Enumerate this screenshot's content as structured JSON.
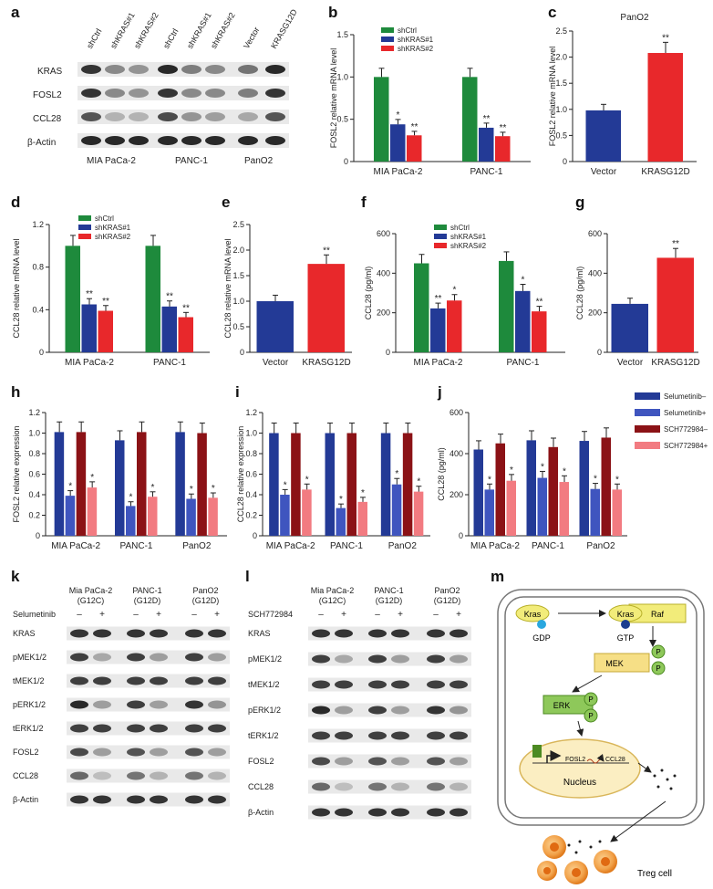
{
  "colors": {
    "green": "#1e8a3c",
    "blue": "#233a96",
    "red": "#e8282b",
    "darkred": "#8b1216",
    "pink": "#f27b81",
    "axis": "#222222"
  },
  "panel_letters": [
    "a",
    "b",
    "c",
    "d",
    "e",
    "f",
    "g",
    "h",
    "i",
    "j",
    "k",
    "l",
    "m"
  ],
  "panel_a": {
    "lane_labels": [
      "shCtrl",
      "shKRAS#1",
      "shKRAS#2",
      "shCtrl",
      "shKRAS#1",
      "shKRAS#2",
      "Vector",
      "KRASG12D"
    ],
    "row_labels": [
      "KRAS",
      "FOSL2",
      "CCL28",
      "β-Actin"
    ],
    "group_labels": [
      "MIA PaCa-2",
      "PANC-1",
      "PanO2"
    ]
  },
  "panel_k": {
    "groups": [
      {
        "name": "Mia PaCa-2",
        "sub": "(G12C)"
      },
      {
        "name": "PANC-1",
        "sub": "(G12D)"
      },
      {
        "name": "PanO2",
        "sub": "(G12D)"
      }
    ],
    "treatment": "Selumetinib",
    "signs": [
      "–",
      "+",
      "–",
      "+",
      "–",
      "+"
    ],
    "row_labels": [
      "KRAS",
      "pMEK1/2",
      "tMEK1/2",
      "pERK1/2",
      "tERK1/2",
      "FOSL2",
      "CCL28",
      "β-Actin"
    ]
  },
  "panel_l": {
    "groups": [
      {
        "name": "Mia PaCa-2",
        "sub": "(G12C)"
      },
      {
        "name": "PANC-1",
        "sub": "(G12D)"
      },
      {
        "name": "PanO2",
        "sub": "(G12D)"
      }
    ],
    "treatment": "SCH772984",
    "signs": [
      "–",
      "+",
      "–",
      "+",
      "–",
      "+"
    ],
    "row_labels": [
      "KRAS",
      "pMEK1/2",
      "tMEK1/2",
      "pERK1/2",
      "tERK1/2",
      "FOSL2",
      "CCL28",
      "β-Actin"
    ]
  },
  "panel_m": {
    "kras1": "Kras",
    "gdp": "GDP",
    "kras2": "Kras",
    "gtp": "GTP",
    "raf": "Raf",
    "mek": "MEK",
    "erk": "ERK",
    "p": "P",
    "fosl2": "FOSL2",
    "ccl28": "CCL28",
    "nucleus": "Nucleus",
    "treg": "Treg cell"
  },
  "chart_data": [
    {
      "panel": "b",
      "type": "bar",
      "ylabel": "FOSL2 relative mRNA level",
      "categories": [
        "MIA PaCa-2",
        "PANC-1"
      ],
      "ylim": [
        0,
        1.5
      ],
      "yticks": [
        "0",
        "0.5",
        "1.0",
        "1.5"
      ],
      "series": [
        {
          "name": "shCtrl",
          "values": [
            1.0,
            1.0
          ]
        },
        {
          "name": "shKRAS#1",
          "values": [
            0.44,
            0.4
          ]
        },
        {
          "name": "shKRAS#2",
          "values": [
            0.31,
            0.3
          ]
        }
      ],
      "annotations": [
        [
          "",
          "*",
          "**"
        ],
        [
          "",
          "**",
          "**"
        ]
      ],
      "legend": "top"
    },
    {
      "panel": "c",
      "type": "bar",
      "title": "PanO2",
      "ylabel": "FOSL2 relative mRNA level",
      "categories": [
        "Vector",
        "KRASG12D"
      ],
      "ylim": [
        0,
        2.5
      ],
      "yticks": [
        "0",
        "0.5",
        "1.0",
        "1.5",
        "2.0",
        "2.5"
      ],
      "values": [
        0.98,
        2.08
      ],
      "annotations": [
        "",
        "**"
      ]
    },
    {
      "panel": "d",
      "type": "bar",
      "ylabel": "CCL28 relative mRNA level",
      "categories": [
        "MIA PaCa-2",
        "PANC-1"
      ],
      "ylim": [
        0,
        1.2
      ],
      "yticks": [
        "0",
        "0.4",
        "0.8",
        "1.2"
      ],
      "series": [
        {
          "name": "shCtrl",
          "values": [
            1.0,
            1.0
          ]
        },
        {
          "name": "shKRAS#1",
          "values": [
            0.45,
            0.43
          ]
        },
        {
          "name": "shKRAS#2",
          "values": [
            0.39,
            0.33
          ]
        }
      ],
      "annotations": [
        [
          "",
          "**",
          "**"
        ],
        [
          "",
          "**",
          "**"
        ]
      ],
      "legend": "top"
    },
    {
      "panel": "e",
      "type": "bar",
      "ylabel": "CCL28 relative mRNA level",
      "categories": [
        "Vector",
        "KRASG12D"
      ],
      "ylim": [
        0,
        2.5
      ],
      "yticks": [
        "0",
        "0.5",
        "1.0",
        "1.5",
        "2.0",
        "2.5"
      ],
      "values": [
        1.0,
        1.73
      ],
      "annotations": [
        "",
        "**"
      ]
    },
    {
      "panel": "f",
      "type": "bar",
      "ylabel": "CCL28 (pg/ml)",
      "categories": [
        "MIA PaCa-2",
        "PANC-1"
      ],
      "ylim": [
        0,
        600
      ],
      "yticks": [
        "0",
        "200",
        "400",
        "600"
      ],
      "series": [
        {
          "name": "shCtrl",
          "values": [
            450,
            462
          ]
        },
        {
          "name": "shKRAS#1",
          "values": [
            222,
            310
          ]
        },
        {
          "name": "shKRAS#2",
          "values": [
            262,
            207
          ]
        }
      ],
      "annotations": [
        [
          "",
          "**",
          "*"
        ],
        [
          "",
          "*",
          "**"
        ]
      ],
      "legend": "top"
    },
    {
      "panel": "g",
      "type": "bar",
      "ylabel": "CCL28 (pg/ml)",
      "categories": [
        "Vector",
        "KRASG12D"
      ],
      "ylim": [
        0,
        600
      ],
      "yticks": [
        "0",
        "200",
        "400",
        "600"
      ],
      "values": [
        245,
        478
      ],
      "annotations": [
        "",
        "**"
      ]
    },
    {
      "panel": "h",
      "type": "bar",
      "ylabel": "FOSL2 relative expression",
      "categories": [
        "MIA PaCa-2",
        "PANC-1",
        "PanO2"
      ],
      "ylim": [
        0,
        1.2
      ],
      "yticks": [
        "0",
        "0.2",
        "0.4",
        "0.6",
        "0.8",
        "1.0",
        "1.2"
      ],
      "series": [
        {
          "name": "Selumetinib–",
          "values": [
            1.01,
            0.93,
            1.01
          ]
        },
        {
          "name": "Selumetinib+",
          "values": [
            0.39,
            0.29,
            0.36
          ]
        },
        {
          "name": "SCH772984–",
          "values": [
            1.01,
            1.01,
            1.0
          ]
        },
        {
          "name": "SCH772984+",
          "values": [
            0.47,
            0.38,
            0.37
          ]
        }
      ],
      "annotations": [
        [
          "",
          "*",
          "",
          "*"
        ],
        [
          "",
          "*",
          "",
          "*"
        ],
        [
          "",
          "*",
          "",
          "*"
        ]
      ]
    },
    {
      "panel": "i",
      "type": "bar",
      "ylabel": "CCL28 relative expression",
      "categories": [
        "MIA PaCa-2",
        "PANC-1",
        "PanO2"
      ],
      "ylim": [
        0,
        1.2
      ],
      "yticks": [
        "0",
        "0.2",
        "0.4",
        "0.6",
        "0.8",
        "1.0",
        "1.2"
      ],
      "series": [
        {
          "name": "Selumetinib–",
          "values": [
            1.0,
            1.0,
            1.0
          ]
        },
        {
          "name": "Selumetinib+",
          "values": [
            0.4,
            0.27,
            0.5
          ]
        },
        {
          "name": "SCH772984–",
          "values": [
            1.0,
            1.0,
            1.0
          ]
        },
        {
          "name": "SCH772984+",
          "values": [
            0.45,
            0.33,
            0.43
          ]
        }
      ],
      "annotations": [
        [
          "",
          "*",
          "",
          "*"
        ],
        [
          "",
          "*",
          "",
          "*"
        ],
        [
          "",
          "*",
          "",
          "*"
        ]
      ]
    },
    {
      "panel": "j",
      "type": "bar",
      "ylabel": "CCL28 (pg/ml)",
      "categories": [
        "MIA PaCa-2",
        "PANC-1",
        "PanO2"
      ],
      "ylim": [
        0,
        600
      ],
      "yticks": [
        "0",
        "200",
        "400",
        "600"
      ],
      "series": [
        {
          "name": "Selumetinib–",
          "values": [
            420,
            465,
            462
          ]
        },
        {
          "name": "Selumetinib+",
          "values": [
            225,
            282,
            228
          ]
        },
        {
          "name": "SCH772984–",
          "values": [
            450,
            432,
            478
          ]
        },
        {
          "name": "SCH772984+",
          "values": [
            268,
            262,
            225
          ]
        }
      ],
      "annotations": [
        [
          "",
          "*",
          "",
          "*"
        ],
        [
          "",
          "*",
          "",
          "*"
        ],
        [
          "",
          "*",
          "",
          "*"
        ]
      ],
      "legend": "right"
    }
  ]
}
